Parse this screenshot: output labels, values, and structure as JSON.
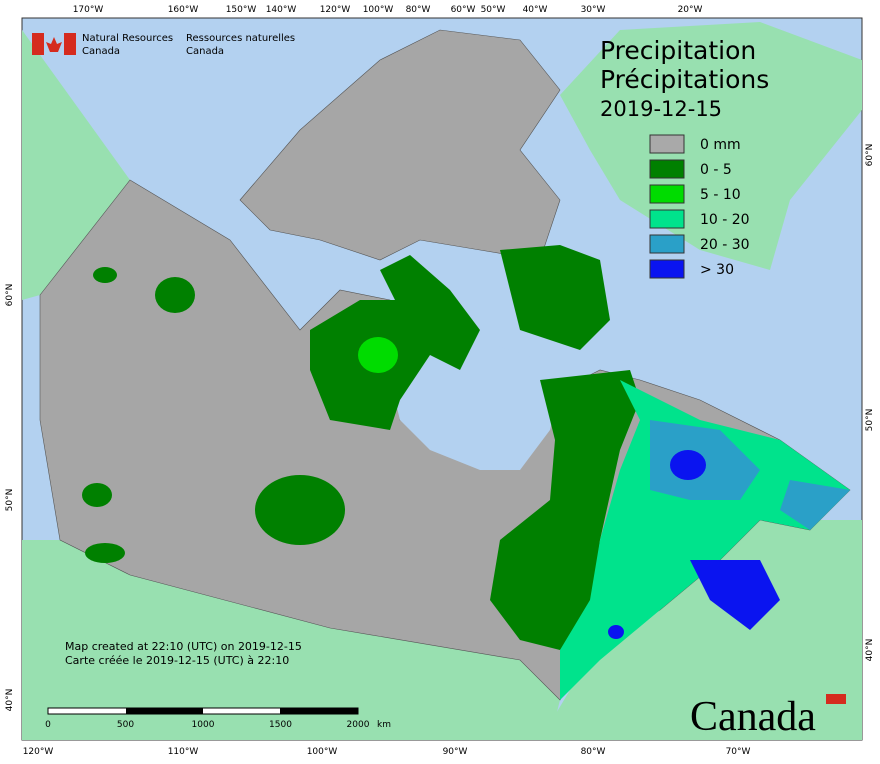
{
  "header": {
    "agency_en": "Natural Resources",
    "agency_en_2": "Canada",
    "agency_fr": "Ressources naturelles",
    "agency_fr_2": "Canada"
  },
  "title": {
    "line1": "Precipitation",
    "line2": "Précipitations",
    "date": "2019-12-15"
  },
  "legend": {
    "items": [
      {
        "label": "0 mm",
        "color": "#a9a9a9"
      },
      {
        "label": "0 - 5",
        "color": "#008000"
      },
      {
        "label": "5 - 10",
        "color": "#00dc00"
      },
      {
        "label": "10 - 20",
        "color": "#00e38c"
      },
      {
        "label": "20 - 30",
        "color": "#2aa0c8"
      },
      {
        "label": "> 30",
        "color": "#0a14f0"
      }
    ]
  },
  "graticule": {
    "top": [
      "170°W",
      "160°W",
      "150°W",
      "140°W",
      "120°W",
      "100°W",
      "80°W",
      "60°W",
      "50°W",
      "40°W",
      "30°W",
      "20°W"
    ],
    "bottom": [
      "120°W",
      "110°W",
      "100°W",
      "90°W",
      "80°W",
      "70°W"
    ],
    "left": [
      "60°N",
      "50°N",
      "40°N"
    ],
    "right": [
      "60°N",
      "50°N",
      "40°N"
    ]
  },
  "credit": {
    "line1": "Map created at 22:10 (UTC) on 2019-12-15",
    "line2": "Carte créée le 2019-12-15 (UTC) à 22:10"
  },
  "scale": {
    "labels": [
      "0",
      "500",
      "1000",
      "1500",
      "2000"
    ],
    "unit": "km"
  },
  "wordmark": "Canada"
}
